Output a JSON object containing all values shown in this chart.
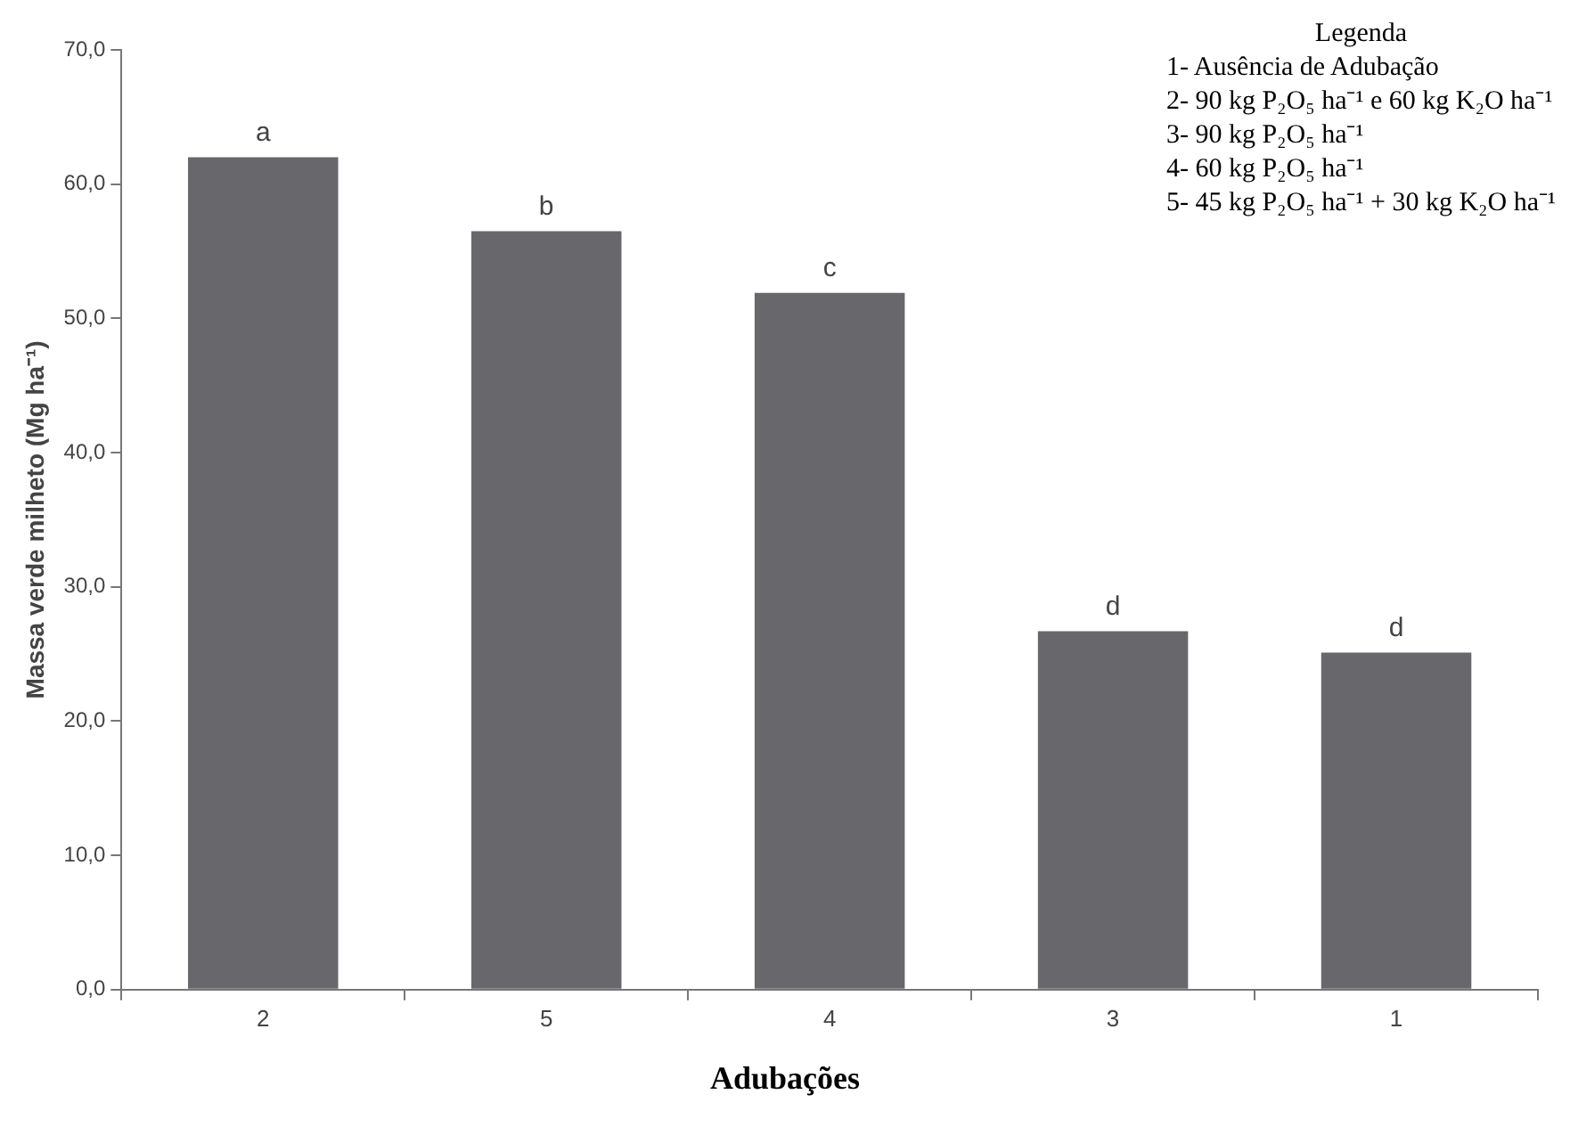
{
  "chart_data": {
    "type": "bar",
    "xlabel": "Adubações",
    "ylabel": "Massa verde milheto (Mg ha⁻¹)",
    "categories": [
      "2",
      "5",
      "4",
      "3",
      "1"
    ],
    "values": [
      62.0,
      56.5,
      51.9,
      26.7,
      25.1
    ],
    "color": "#68686c",
    "ylim": [
      0,
      70
    ],
    "yticks": [
      {
        "value": 0,
        "label": "0,0"
      },
      {
        "value": 10,
        "label": "10,0"
      },
      {
        "value": 20,
        "label": "20,0"
      },
      {
        "value": 30,
        "label": "30,0"
      },
      {
        "value": 40,
        "label": "40,0"
      },
      {
        "value": 50,
        "label": "50,0"
      },
      {
        "value": 60,
        "label": "60,0"
      },
      {
        "value": 70,
        "label": "70,0"
      }
    ],
    "grid": false,
    "legend": false,
    "legend_title": "Legenda",
    "annotations": [
      {
        "text": "a",
        "x": "2",
        "y": 62.0
      },
      {
        "text": "b",
        "x": "5",
        "y": 56.5
      },
      {
        "text": "c",
        "x": "4",
        "y": 51.9
      },
      {
        "text": "d",
        "x": "3",
        "y": 26.7
      },
      {
        "text": "d",
        "x": "1",
        "y": 25.1
      },
      "1- Ausência de Adubação",
      "2- 90 kg P₂O₅ ha⁻¹ e 60 kg K₂O ha⁻¹",
      "3- 90 kg P₂O₅ ha⁻¹",
      "4- 60 kg P₂O₅ ha⁻¹",
      "5- 45 kg P₂O₅ ha⁻¹ + 30 kg K₂O ha⁻¹"
    ]
  }
}
